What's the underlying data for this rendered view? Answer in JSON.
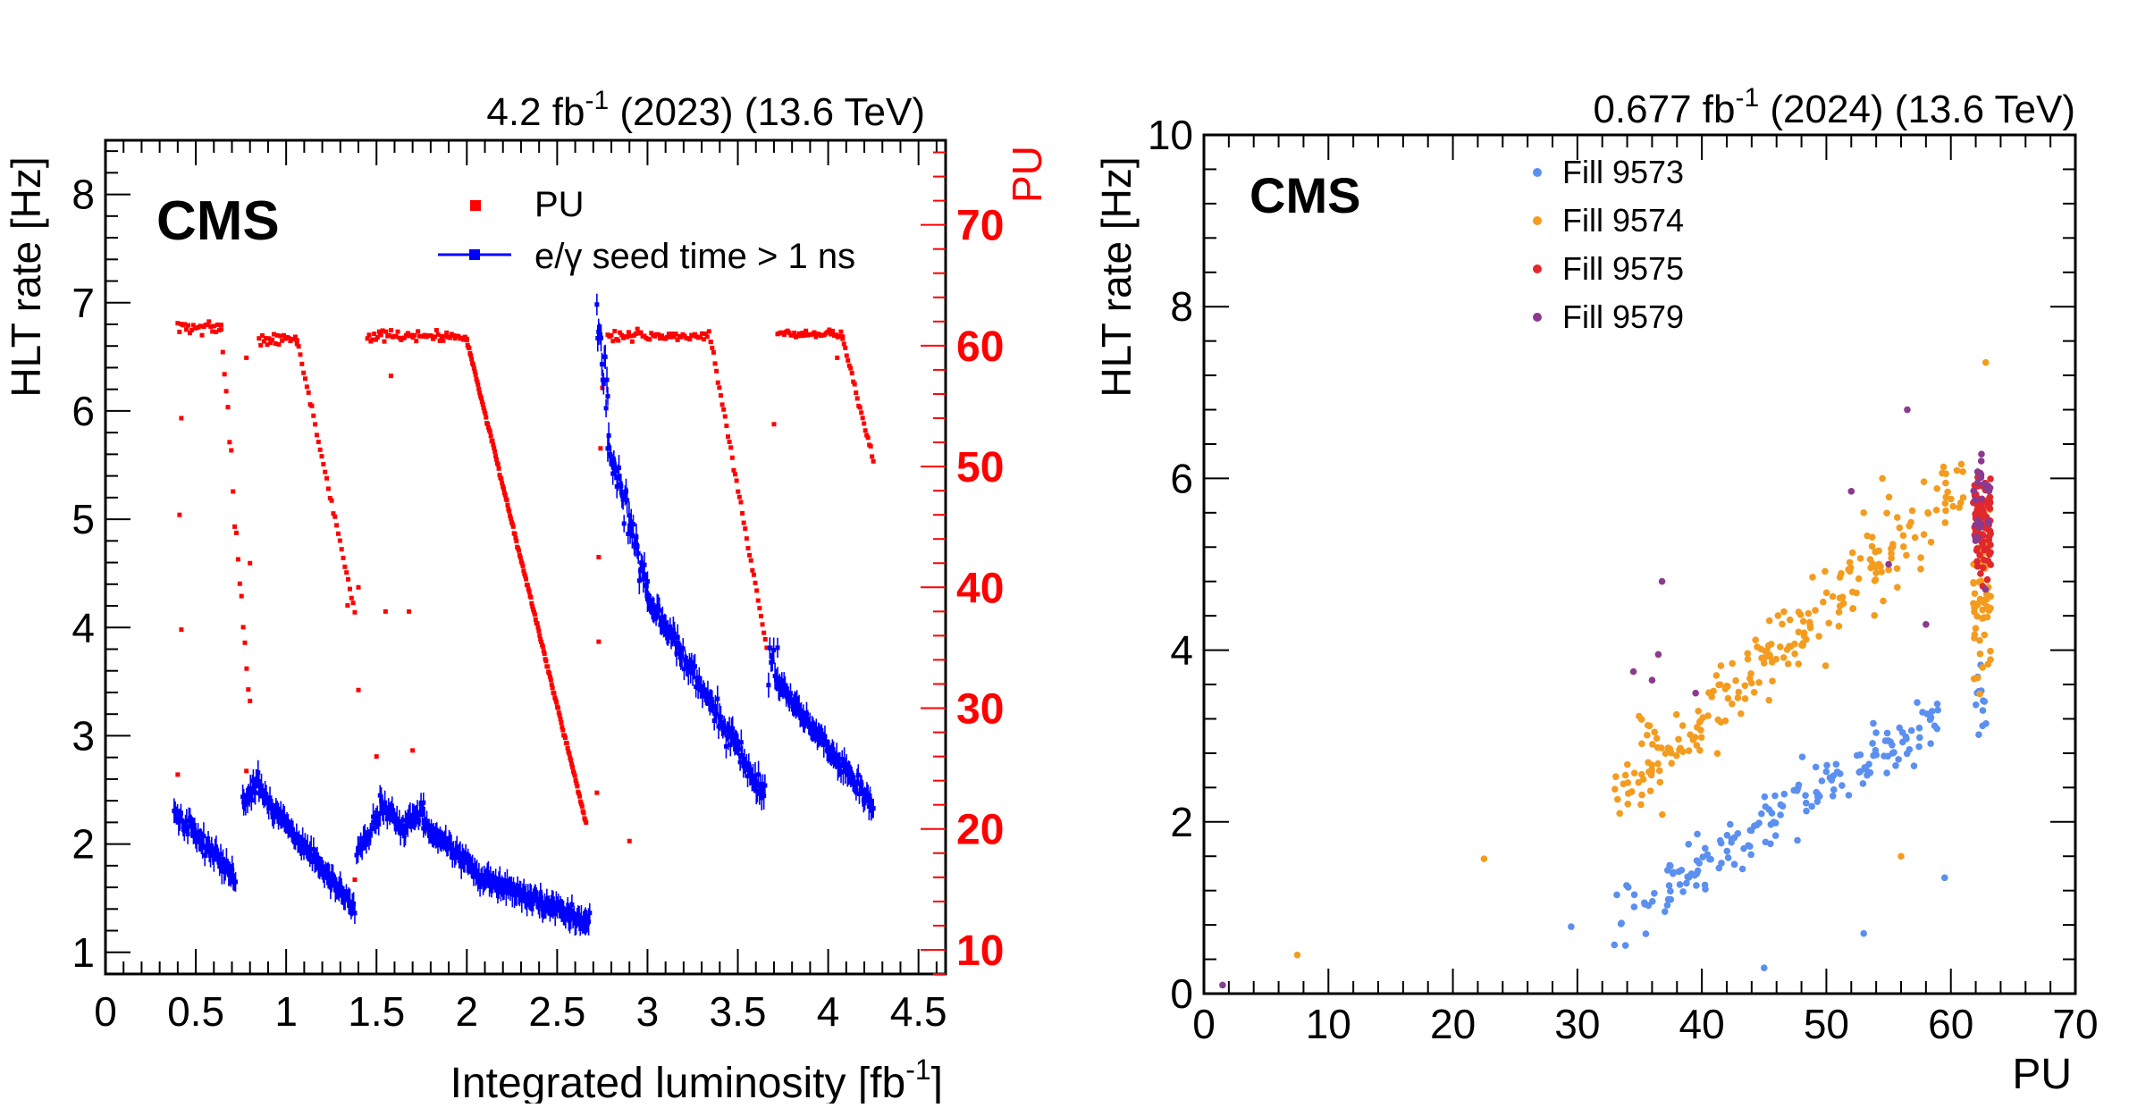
{
  "chart_data": [
    {
      "type": "scatter",
      "header": {
        "lumi": "4.2 fb",
        "lumi_exp": "-1",
        "year": " (2023) (13.6 TeV)"
      },
      "label": "CMS",
      "xlabel": "Integrated luminosity [fb",
      "xlabel_exp": "-1",
      "xlabel_end": "]",
      "ylabel": "HLT rate [Hz]",
      "ylabel_right": "PU",
      "xlim": [
        0,
        4.65
      ],
      "ylim": [
        0.8,
        8.5
      ],
      "ylim_right": [
        8,
        77
      ],
      "x_ticks": [
        "0",
        "0.5",
        "1",
        "1.5",
        "2",
        "2.5",
        "3",
        "3.5",
        "4",
        "4.5"
      ],
      "y_ticks": [
        "1",
        "2",
        "3",
        "4",
        "5",
        "6",
        "7",
        "8"
      ],
      "y_ticks_right": [
        "10",
        "20",
        "30",
        "40",
        "50",
        "60",
        "70"
      ],
      "legend": [
        "PU",
        "e/γ seed time > 1 ns"
      ],
      "colors": {
        "pu": "#ff0000",
        "rate": "#0000ff"
      },
      "rate_segments": [
        {
          "x0": 0.38,
          "x1": 0.72,
          "y0": 2.3,
          "y1": 1.7,
          "n": 55,
          "noise": 0.09
        },
        {
          "x0": 0.76,
          "x1": 0.85,
          "y0": 2.35,
          "y1": 2.6,
          "n": 18,
          "noise": 0.09
        },
        {
          "x0": 0.85,
          "x1": 1.38,
          "y0": 2.5,
          "y1": 1.4,
          "n": 80,
          "noise": 0.07
        },
        {
          "x0": 1.39,
          "x1": 1.52,
          "y0": 1.95,
          "y1": 2.25,
          "n": 18,
          "noise": 0.08
        },
        {
          "x0": 1.52,
          "x1": 1.66,
          "y0": 2.4,
          "y1": 2.1,
          "n": 22,
          "noise": 0.08
        },
        {
          "x0": 1.66,
          "x1": 1.76,
          "y0": 2.2,
          "y1": 2.3,
          "n": 16,
          "noise": 0.08
        },
        {
          "x0": 1.76,
          "x1": 2.05,
          "y0": 2.2,
          "y1": 1.75,
          "n": 48,
          "noise": 0.06
        },
        {
          "x0": 2.05,
          "x1": 2.68,
          "y0": 1.72,
          "y1": 1.28,
          "n": 110,
          "noise": 0.07
        },
        {
          "x0": 2.72,
          "x1": 2.78,
          "y0": 6.8,
          "y1": 6.1,
          "n": 14,
          "noise": 0.25
        },
        {
          "x0": 2.78,
          "x1": 3.0,
          "y0": 5.7,
          "y1": 4.4,
          "n": 40,
          "noise": 0.18
        },
        {
          "x0": 3.0,
          "x1": 3.65,
          "y0": 4.3,
          "y1": 2.45,
          "n": 110,
          "noise": 0.1
        },
        {
          "x0": 3.67,
          "x1": 3.72,
          "y0": 3.7,
          "y1": 3.6,
          "n": 8,
          "noise": 0.2
        },
        {
          "x0": 3.72,
          "x1": 4.25,
          "y0": 3.5,
          "y1": 2.35,
          "n": 90,
          "noise": 0.08
        }
      ],
      "pu_segments": [
        {
          "x0": 0.4,
          "x1": 0.64,
          "y0": 61.5,
          "y1": 61.5,
          "n": 26,
          "noise": 0.6
        },
        {
          "x0": 0.64,
          "x1": 0.8,
          "y0": 61,
          "y1": 30,
          "n": 18,
          "noise": 1.5
        },
        {
          "x0": 0.85,
          "x1": 1.06,
          "y0": 60.5,
          "y1": 60.5,
          "n": 24,
          "noise": 0.5
        },
        {
          "x0": 1.06,
          "x1": 1.38,
          "y0": 60.5,
          "y1": 38,
          "n": 36,
          "noise": 0.3
        },
        {
          "x0": 1.45,
          "x1": 2.0,
          "y0": 60.8,
          "y1": 60.8,
          "n": 60,
          "noise": 0.4
        },
        {
          "x0": 2.0,
          "x1": 2.66,
          "y0": 60.5,
          "y1": 20.5,
          "n": 150,
          "noise": 0.2
        },
        {
          "x0": 2.78,
          "x1": 3.35,
          "y0": 60.8,
          "y1": 60.8,
          "n": 60,
          "noise": 0.4
        },
        {
          "x0": 3.35,
          "x1": 3.66,
          "y0": 60.5,
          "y1": 35,
          "n": 40,
          "noise": 0.3
        },
        {
          "x0": 3.72,
          "x1": 4.08,
          "y0": 61.0,
          "y1": 61.0,
          "n": 40,
          "noise": 0.3
        },
        {
          "x0": 4.08,
          "x1": 4.25,
          "y0": 60.5,
          "y1": 50.5,
          "n": 24,
          "noise": 0.3
        }
      ],
      "pu_outliers": [
        [
          0.4,
          24.5
        ],
        [
          0.42,
          36.5
        ],
        [
          0.41,
          46.0
        ],
        [
          0.42,
          54.0
        ],
        [
          0.78,
          24.8
        ],
        [
          0.8,
          42.0
        ],
        [
          0.78,
          59.0
        ],
        [
          1.34,
          38.5
        ],
        [
          1.4,
          40.0
        ],
        [
          1.4,
          31.5
        ],
        [
          1.38,
          15.8
        ],
        [
          1.5,
          26.0
        ],
        [
          1.55,
          38.0
        ],
        [
          1.58,
          57.5
        ],
        [
          1.68,
          38.0
        ],
        [
          1.7,
          26.5
        ],
        [
          1.52,
          61.0
        ],
        [
          2.72,
          23.0
        ],
        [
          2.73,
          35.5
        ],
        [
          2.73,
          42.5
        ],
        [
          2.74,
          51.5
        ],
        [
          2.75,
          56.5
        ],
        [
          2.9,
          19.0
        ],
        [
          3.68,
          35.0
        ],
        [
          3.7,
          53.5
        ],
        [
          4.05,
          59.0
        ]
      ]
    },
    {
      "type": "scatter",
      "header": {
        "lumi": "0.677 fb",
        "lumi_exp": "-1",
        "year": " (2024) (13.6 TeV)"
      },
      "label": "CMS",
      "xlabel": "PU",
      "ylabel": "HLT rate [Hz]",
      "xlim": [
        0,
        70
      ],
      "ylim": [
        0,
        10
      ],
      "x_ticks": [
        "0",
        "10",
        "20",
        "30",
        "40",
        "50",
        "60",
        "70"
      ],
      "y_ticks": [
        "0",
        "2",
        "4",
        "6",
        "8",
        "10"
      ],
      "series": [
        {
          "name": "Fill 9573",
          "color": "#5b8ff0"
        },
        {
          "name": "Fill 9574",
          "color": "#f39c1f"
        },
        {
          "name": "Fill 9575",
          "color": "#e0282d"
        },
        {
          "name": "Fill 9579",
          "color": "#8b3a8e"
        }
      ],
      "clusters": [
        {
          "series": 0,
          "xmin": 32,
          "xmax": 59,
          "a": -2.1,
          "b": 0.09,
          "n": 170,
          "noise": 0.35,
          "seed": 11
        },
        {
          "series": 0,
          "xmin": 62,
          "xmax": 63,
          "a": 3.4,
          "b": 0.0,
          "n": 12,
          "noise": 0.4,
          "seed": 12
        },
        {
          "series": 1,
          "xmin": 33,
          "xmax": 61,
          "a": -2.0,
          "b": 0.13,
          "n": 230,
          "noise": 0.5,
          "seed": 21
        },
        {
          "series": 1,
          "xmin": 61.8,
          "xmax": 63.2,
          "a": 4.8,
          "b": 0.0,
          "n": 70,
          "noise": 1.0,
          "seed": 22
        },
        {
          "series": 2,
          "xmin": 61.8,
          "xmax": 63.2,
          "a": 5.5,
          "b": 0.0,
          "n": 90,
          "noise": 0.6,
          "seed": 31
        },
        {
          "series": 3,
          "xmin": 61.8,
          "xmax": 63.2,
          "a": 5.6,
          "b": 0.0,
          "n": 25,
          "noise": 0.7,
          "seed": 41
        }
      ],
      "outliers": [
        {
          "series": 1,
          "x": 7.5,
          "y": 0.45
        },
        {
          "series": 1,
          "x": 22.5,
          "y": 1.57
        },
        {
          "series": 0,
          "x": 29.5,
          "y": 0.78
        },
        {
          "series": 0,
          "x": 45.0,
          "y": 0.3
        },
        {
          "series": 0,
          "x": 53.0,
          "y": 0.7
        },
        {
          "series": 0,
          "x": 59.5,
          "y": 1.35
        },
        {
          "series": 1,
          "x": 56.0,
          "y": 1.6
        },
        {
          "series": 1,
          "x": 53.0,
          "y": 5.6
        },
        {
          "series": 1,
          "x": 54.5,
          "y": 6.0
        },
        {
          "series": 1,
          "x": 62.8,
          "y": 7.35
        },
        {
          "series": 3,
          "x": 1.5,
          "y": 0.1
        },
        {
          "series": 3,
          "x": 34.5,
          "y": 3.75
        },
        {
          "series": 3,
          "x": 36.0,
          "y": 3.65
        },
        {
          "series": 3,
          "x": 36.5,
          "y": 3.95
        },
        {
          "series": 3,
          "x": 36.8,
          "y": 4.8
        },
        {
          "series": 3,
          "x": 39.5,
          "y": 3.5
        },
        {
          "series": 3,
          "x": 52.0,
          "y": 5.85
        },
        {
          "series": 3,
          "x": 56.5,
          "y": 6.8
        },
        {
          "series": 3,
          "x": 55.0,
          "y": 5.0
        },
        {
          "series": 3,
          "x": 58.0,
          "y": 4.3
        }
      ]
    }
  ]
}
